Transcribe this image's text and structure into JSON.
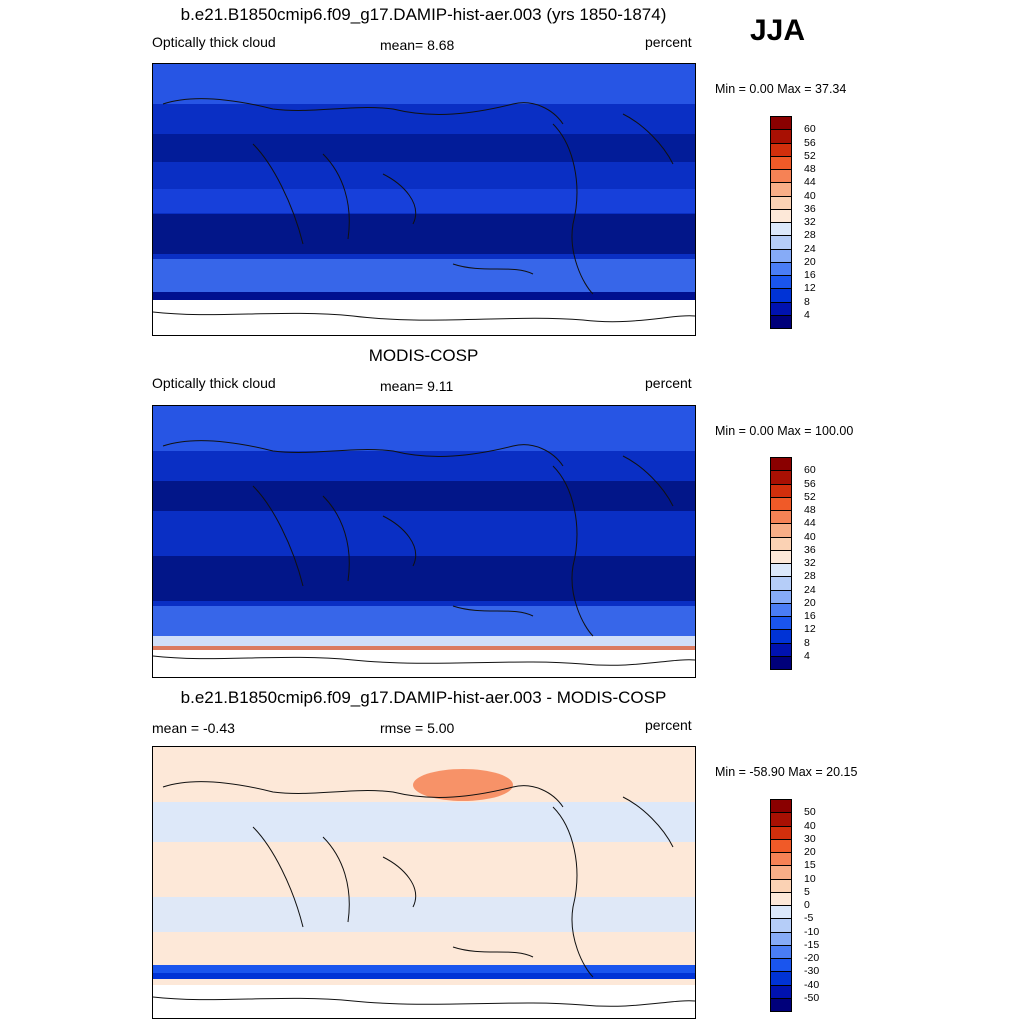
{
  "season": "JJA",
  "panels": [
    {
      "title": "b.e21.B1850cmip6.f09_g17.DAMIP-hist-aer.003 (yrs 1850-1874)",
      "left_label": "Optically thick cloud",
      "center_label": "mean=   8.68",
      "right_label": "percent",
      "minmax": "Min =   0.00 Max =  37.34"
    },
    {
      "title": "MODIS-COSP",
      "left_label": "Optically thick cloud",
      "center_label": "mean=   9.11",
      "right_label": "percent",
      "minmax": "Min =   0.00 Max = 100.00"
    },
    {
      "title": "b.e21.B1850cmip6.f09_g17.DAMIP-hist-aer.003 - MODIS-COSP",
      "left_label": "mean =  -0.43",
      "center_label": "rmse =   5.00",
      "right_label": "percent",
      "minmax": "Min = -58.90 Max =  20.15"
    }
  ],
  "chart_data": [
    {
      "type": "heatmap",
      "title": "b.e21.B1850cmip6.f09_g17.DAMIP-hist-aer.003 (yrs 1850-1874)",
      "variable": "Optically thick cloud",
      "units": "percent",
      "mean": 8.68,
      "min": 0.0,
      "max": 37.34,
      "colorbar_levels": [
        4,
        8,
        12,
        16,
        20,
        24,
        28,
        32,
        36,
        40,
        44,
        48,
        52,
        56,
        60
      ],
      "colorbar_colors": [
        "#00007a",
        "#0012b0",
        "#0033d6",
        "#1a55ee",
        "#4a7df5",
        "#86abf7",
        "#b5cdf8",
        "#dbe8fb",
        "#fde8d8",
        "#fbd2b4",
        "#f8ae87",
        "#f68255",
        "#f05a28",
        "#d22f0c",
        "#a81003",
        "#8a0000"
      ]
    },
    {
      "type": "heatmap",
      "title": "MODIS-COSP",
      "variable": "Optically thick cloud",
      "units": "percent",
      "mean": 9.11,
      "min": 0.0,
      "max": 100.0,
      "colorbar_levels": [
        4,
        8,
        12,
        16,
        20,
        24,
        28,
        32,
        36,
        40,
        44,
        48,
        52,
        56,
        60
      ],
      "colorbar_colors": [
        "#00007a",
        "#0012b0",
        "#0033d6",
        "#1a55ee",
        "#4a7df5",
        "#86abf7",
        "#b5cdf8",
        "#dbe8fb",
        "#fde8d8",
        "#fbd2b4",
        "#f8ae87",
        "#f68255",
        "#f05a28",
        "#d22f0c",
        "#a81003",
        "#8a0000"
      ]
    },
    {
      "type": "heatmap",
      "title": "b.e21.B1850cmip6.f09_g17.DAMIP-hist-aer.003 - MODIS-COSP",
      "units": "percent",
      "mean": -0.43,
      "rmse": 5.0,
      "min": -58.9,
      "max": 20.15,
      "colorbar_levels": [
        -50,
        -40,
        -30,
        -20,
        -15,
        -10,
        -5,
        0,
        5,
        10,
        15,
        20,
        30,
        40,
        50
      ],
      "colorbar_colors": [
        "#00007a",
        "#0012b0",
        "#0033d6",
        "#1a55ee",
        "#4a7df5",
        "#86abf7",
        "#b5cdf8",
        "#dbe8fb",
        "#fde8d8",
        "#fbd2b4",
        "#f8ae87",
        "#f68255",
        "#f05a28",
        "#d22f0c",
        "#a81003",
        "#8a0000"
      ]
    }
  ]
}
